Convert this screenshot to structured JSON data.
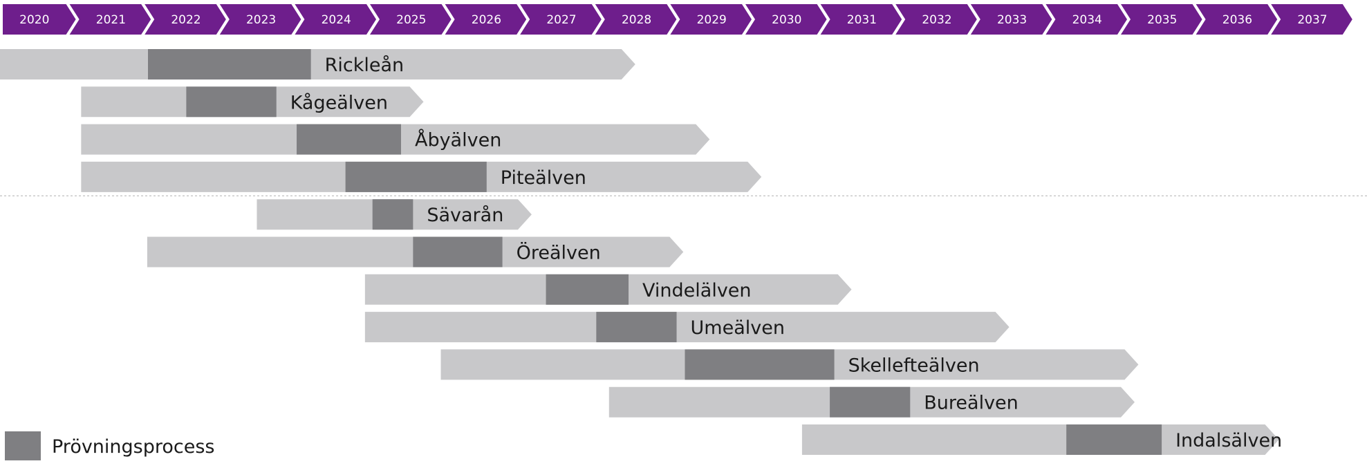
{
  "chart_data": {
    "type": "gantt",
    "colors": {
      "timeline": "#6e1e8c",
      "bar": "#c8c8ca",
      "process": "#7f7f82",
      "text": "#1a1a1a",
      "divider": "#b0b0b0"
    },
    "years": [
      "2020",
      "2021",
      "2022",
      "2023",
      "2024",
      "2025",
      "2026",
      "2027",
      "2028",
      "2029",
      "2030",
      "2031",
      "2032",
      "2033",
      "2034",
      "2035",
      "2036",
      "2037"
    ],
    "rivers": [
      {
        "name": "Rickleån",
        "start": 2019.78,
        "end": 2028.35,
        "process_start": 2021.86,
        "process_end": 2024.03
      },
      {
        "name": "Kågeälven",
        "start": 2020.97,
        "end": 2025.53,
        "process_start": 2022.37,
        "process_end": 2023.57
      },
      {
        "name": "Åbyälven",
        "start": 2020.97,
        "end": 2029.34,
        "process_start": 2023.84,
        "process_end": 2025.23
      },
      {
        "name": "Piteälven",
        "start": 2020.97,
        "end": 2030.03,
        "process_start": 2024.49,
        "process_end": 2026.37
      },
      {
        "name": "Sävarån",
        "start": 2023.31,
        "end": 2026.97,
        "process_start": 2024.85,
        "process_end": 2025.39
      },
      {
        "name": "Öreälven",
        "start": 2021.85,
        "end": 2028.99,
        "process_start": 2025.39,
        "process_end": 2026.58
      },
      {
        "name": "Vindelälven",
        "start": 2024.75,
        "end": 2031.23,
        "process_start": 2027.16,
        "process_end": 2028.26
      },
      {
        "name": "Umeälven",
        "start": 2024.75,
        "end": 2033.33,
        "process_start": 2027.83,
        "process_end": 2028.9
      },
      {
        "name": "Skellefteälven",
        "start": 2025.76,
        "end": 2035.05,
        "process_start": 2029.01,
        "process_end": 2031.0
      },
      {
        "name": "Bureälven",
        "start": 2028.0,
        "end": 2035.0,
        "process_start": 2030.94,
        "process_end": 2032.01
      },
      {
        "name": "Indalsälven",
        "start": 2030.57,
        "end": 2036.92,
        "process_start": 2034.09,
        "process_end": 2035.36
      }
    ],
    "divider_after_row": 4,
    "legend": {
      "label": "Prövningsprocess"
    }
  }
}
